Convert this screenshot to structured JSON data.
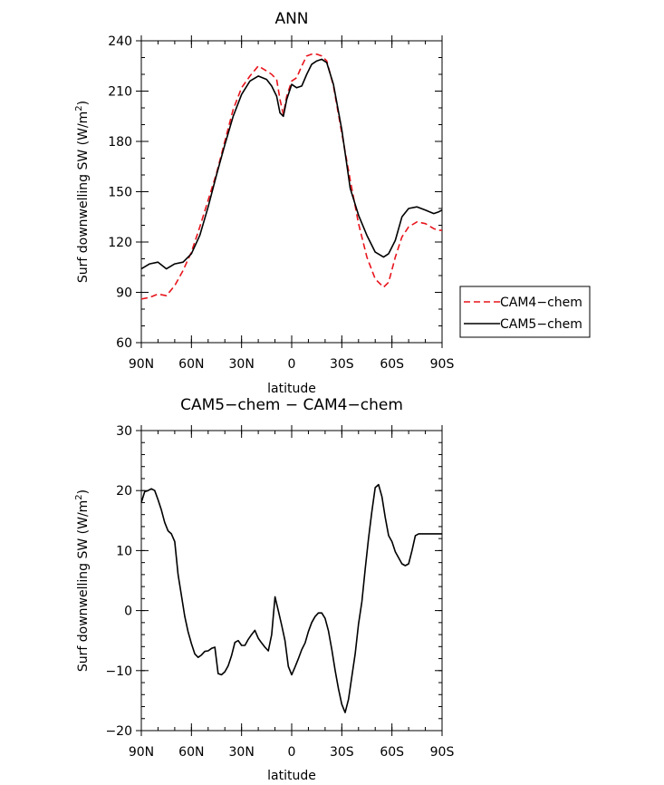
{
  "chart_data": [
    {
      "type": "line",
      "title": "ANN",
      "xlabel": "latitude",
      "ylabel_main": "Surf downwelling SW (W/m",
      "ylabel_sup": "2",
      "ylabel_close": ")",
      "xlim": [
        -90,
        90
      ],
      "ylim": [
        60,
        240
      ],
      "x_ticks": [
        -90,
        -60,
        -30,
        0,
        30,
        60,
        90
      ],
      "x_tick_labels": [
        "90N",
        "60N",
        "30N",
        "0",
        "30S",
        "60S",
        "90S"
      ],
      "y_ticks": [
        60,
        90,
        120,
        150,
        180,
        210,
        240
      ],
      "y_tick_labels": [
        "60",
        "90",
        "120",
        "150",
        "180",
        "210",
        "240"
      ],
      "legend_position": "outside-right",
      "series": [
        {
          "name": "CAM4−chem",
          "color": "#e8141c",
          "dash": "dashed",
          "x": [
            -90,
            -85,
            -80,
            -75,
            -70,
            -65,
            -60,
            -55,
            -50,
            -45,
            -40,
            -35,
            -30,
            -25,
            -20,
            -15,
            -12,
            -9,
            -7,
            -5,
            -3,
            0,
            3,
            6,
            9,
            12,
            15,
            18,
            21,
            25,
            30,
            35,
            40,
            45,
            50,
            55,
            58,
            62,
            66,
            70,
            75,
            80,
            85,
            88,
            90
          ],
          "y": [
            86,
            87,
            89,
            88,
            94,
            103,
            114,
            129,
            145,
            161,
            180,
            199,
            212,
            219,
            225,
            222,
            220,
            217,
            205,
            196,
            207,
            216,
            218,
            225,
            231,
            232,
            232,
            231,
            228,
            213,
            185,
            157,
            131,
            111,
            98,
            93,
            96,
            111,
            123,
            129,
            132,
            131,
            128,
            127,
            127
          ]
        },
        {
          "name": "CAM5−chem",
          "color": "#000000",
          "dash": "solid",
          "x": [
            -90,
            -85,
            -80,
            -75,
            -70,
            -65,
            -60,
            -55,
            -50,
            -45,
            -40,
            -35,
            -30,
            -25,
            -20,
            -15,
            -12,
            -9,
            -7,
            -5,
            -3,
            0,
            3,
            6,
            9,
            12,
            15,
            18,
            21,
            25,
            30,
            35,
            40,
            45,
            50,
            55,
            58,
            62,
            66,
            70,
            75,
            80,
            85,
            88,
            90
          ],
          "y": [
            104,
            107,
            108,
            104,
            107,
            108,
            113,
            124,
            141,
            160,
            178,
            195,
            208,
            216,
            219,
            217,
            213,
            207,
            197,
            195,
            205,
            214,
            212,
            213,
            220,
            226,
            228,
            229,
            227,
            214,
            187,
            152,
            136,
            124,
            114,
            111,
            113,
            121,
            135,
            140,
            141,
            139,
            137,
            138,
            139
          ]
        }
      ]
    },
    {
      "type": "line",
      "title": "CAM5−chem − CAM4−chem",
      "xlabel": "latitude",
      "ylabel_main": "Surf downwelling SW (W/m",
      "ylabel_sup": "2",
      "ylabel_close": ")",
      "xlim": [
        -90,
        90
      ],
      "ylim": [
        -20,
        30
      ],
      "x_ticks": [
        -90,
        -60,
        -30,
        0,
        30,
        60,
        90
      ],
      "x_tick_labels": [
        "90N",
        "60N",
        "30N",
        "0",
        "30S",
        "60S",
        "90S"
      ],
      "y_ticks": [
        -20,
        -10,
        0,
        10,
        20,
        30
      ],
      "y_tick_labels": [
        "−20",
        "−10",
        "0",
        "10",
        "20",
        "30"
      ],
      "series": [
        {
          "name": "",
          "color": "#000000",
          "dash": "solid",
          "x": [
            -90,
            -88,
            -86,
            -84,
            -82,
            -80,
            -78,
            -76,
            -74,
            -72,
            -70,
            -68,
            -66,
            -64,
            -62,
            -60,
            -58,
            -56,
            -54,
            -52,
            -50,
            -48,
            -46,
            -44,
            -42,
            -40,
            -38,
            -36,
            -34,
            -32,
            -30,
            -28,
            -26,
            -24,
            -22,
            -20,
            -18,
            -16,
            -14,
            -12,
            -10,
            -8,
            -6,
            -4,
            -2,
            0,
            2,
            4,
            6,
            8,
            10,
            12,
            14,
            16,
            18,
            20,
            22,
            24,
            26,
            28,
            30,
            32,
            34,
            36,
            38,
            40,
            42,
            44,
            46,
            48,
            50,
            52,
            54,
            56,
            58,
            60,
            62,
            64,
            66,
            68,
            70,
            72,
            74,
            76,
            78,
            80,
            82,
            84,
            86,
            88,
            90
          ],
          "y": [
            18,
            19.8,
            20,
            20.3,
            20,
            18.5,
            16.8,
            14.7,
            13.3,
            12.8,
            11.5,
            6,
            2.5,
            -1,
            -3.5,
            -5.5,
            -7.2,
            -7.8,
            -7.4,
            -6.8,
            -6.7,
            -6.3,
            -6.1,
            -10.5,
            -10.7,
            -10.2,
            -9.2,
            -7.5,
            -5.3,
            -5,
            -5.8,
            -5.8,
            -4.8,
            -4,
            -3.3,
            -4.6,
            -5.4,
            -6.1,
            -6.7,
            -4,
            2.3,
            0,
            -2.4,
            -5,
            -9.3,
            -10.7,
            -9.4,
            -8,
            -6.5,
            -5.4,
            -3.5,
            -2,
            -1,
            -0.4,
            -0.4,
            -1.3,
            -3.4,
            -6.5,
            -10,
            -13,
            -15.6,
            -17,
            -14.8,
            -11,
            -7.2,
            -2.2,
            1.5,
            7,
            12,
            16.5,
            20.5,
            21,
            19,
            15.5,
            12.5,
            11.5,
            9.8,
            8.8,
            7.8,
            7.5,
            7.8,
            10,
            12.5,
            12.8,
            12.8,
            12.8,
            12.8,
            12.8,
            12.8,
            12.8,
            12.8
          ]
        }
      ]
    }
  ]
}
